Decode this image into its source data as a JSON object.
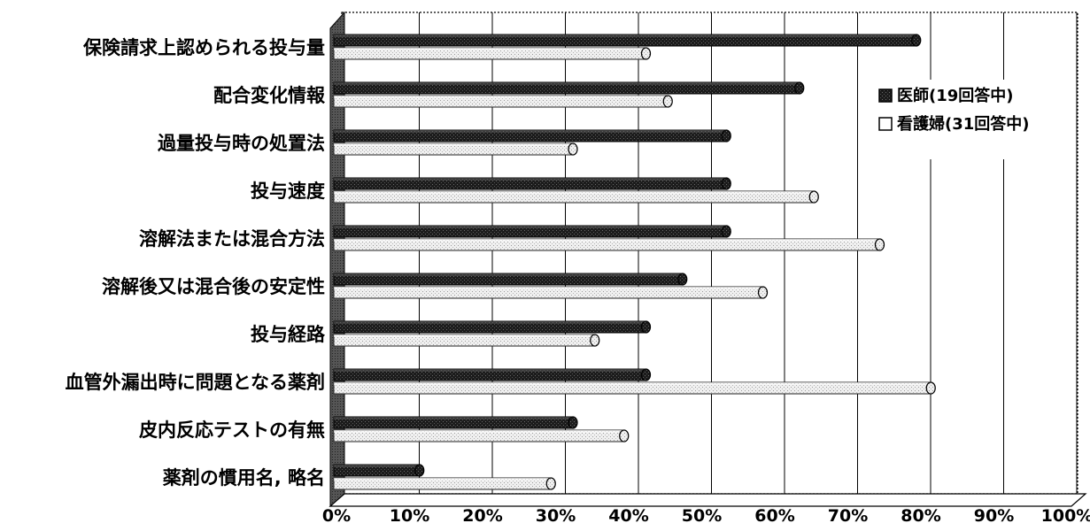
{
  "chart_data": {
    "type": "bar",
    "orientation": "horizontal",
    "categories": [
      "保険請求上認められる投与量",
      "配合変化情報",
      "過量投与時の処置法",
      "投与速度",
      "溶解法または混合方法",
      "溶解後又は混合後の安定性",
      "投与経路",
      "血管外漏出時に問題となる薬剤",
      "皮内反応テストの有無",
      "薬剤の慣用名, 略名"
    ],
    "series": [
      {
        "name": "医師(19回答中)",
        "values": [
          79,
          63,
          53,
          53,
          53,
          47,
          42,
          42,
          32,
          11
        ]
      },
      {
        "name": "看護婦(31回答中)",
        "values": [
          42,
          45,
          32,
          65,
          74,
          58,
          35,
          81,
          39,
          29
        ]
      }
    ],
    "xticks": [
      "0%",
      "10%",
      "20%",
      "30%",
      "40%",
      "50%",
      "60%",
      "70%",
      "80%",
      "90%",
      "100%"
    ],
    "xlim": [
      0,
      100
    ],
    "grid": true,
    "legend_position": "right",
    "colors": {
      "series1": "#1f1f1f",
      "series2": "#ececec"
    }
  }
}
